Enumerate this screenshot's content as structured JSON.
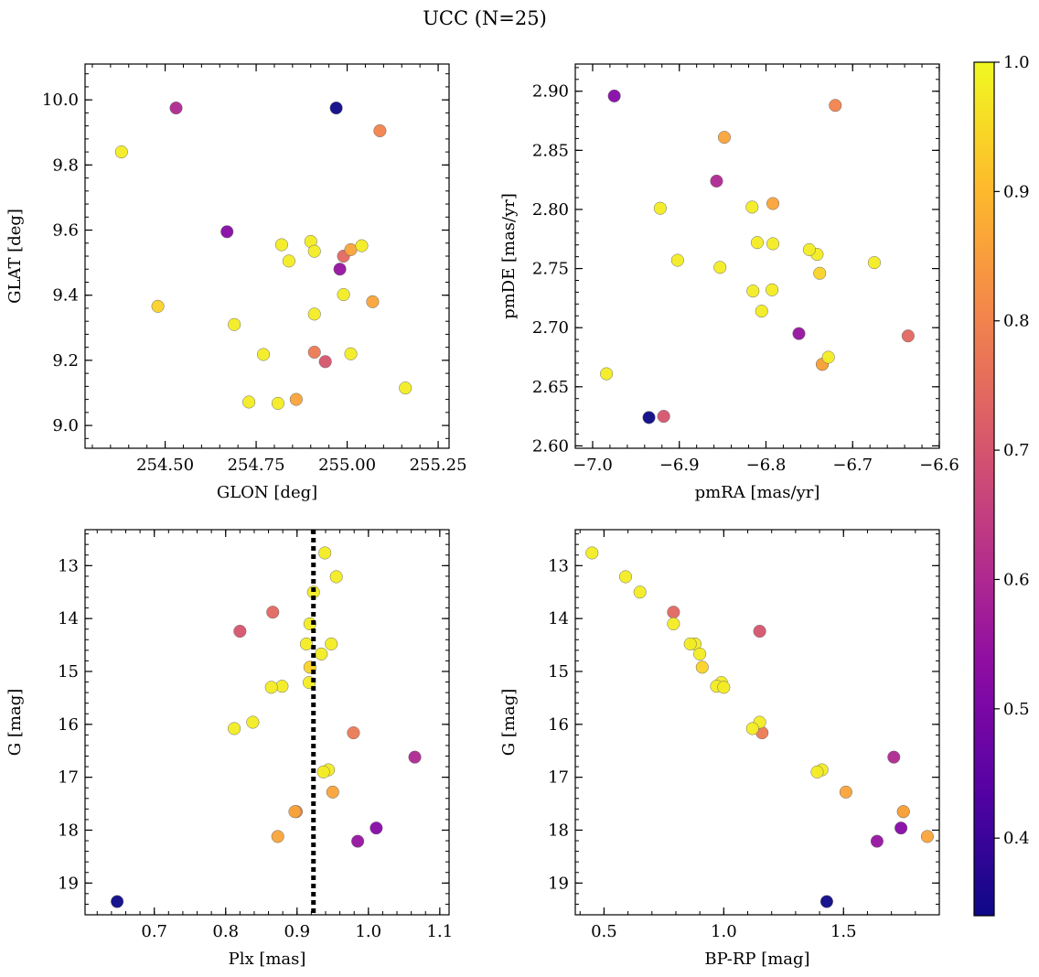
{
  "chart_data": {
    "type": "scatter",
    "title": "UCC (N=25)",
    "colorbar": {
      "colormap": "plasma",
      "range": [
        0.34,
        1.0
      ],
      "ticks": [
        0.4,
        0.5,
        0.6,
        0.7,
        0.8,
        0.9,
        1.0
      ],
      "tick_labels": [
        "0.4",
        "0.5",
        "0.6",
        "0.7",
        "0.8",
        "0.9",
        "1.0"
      ]
    },
    "stars": [
      {
        "glon": 254.38,
        "glat": 9.84,
        "pmra": -6.853,
        "pmde": 2.751,
        "plx": 0.917,
        "g": 15.21,
        "bprp": 0.99,
        "p": 0.98
      },
      {
        "glon": 254.53,
        "glat": 9.975,
        "pmra": -6.857,
        "pmde": 2.824,
        "plx": 1.065,
        "g": 16.62,
        "bprp": 1.71,
        "p": 0.6
      },
      {
        "glon": 254.97,
        "glat": 9.975,
        "pmra": -6.935,
        "pmde": 2.624,
        "plx": 0.648,
        "g": 19.35,
        "bprp": 1.43,
        "p": 0.34
      },
      {
        "glon": 255.09,
        "glat": 9.905,
        "pmra": -6.72,
        "pmde": 2.888,
        "plx": 0.899,
        "g": 17.65,
        "bprp": 1.75,
        "p": 0.8
      },
      {
        "glon": 254.67,
        "glat": 9.595,
        "pmra": -6.975,
        "pmde": 2.896,
        "plx": 1.011,
        "g": 17.96,
        "bprp": 1.74,
        "p": 0.52
      },
      {
        "glon": 254.82,
        "glat": 9.555,
        "pmra": -6.792,
        "pmde": 2.771,
        "plx": 0.944,
        "g": 16.86,
        "bprp": 1.41,
        "p": 0.98
      },
      {
        "glon": 254.9,
        "glat": 9.565,
        "pmra": -6.816,
        "pmde": 2.802,
        "plx": 0.939,
        "g": 12.76,
        "bprp": 0.45,
        "p": 0.98
      },
      {
        "glon": 254.91,
        "glat": 9.535,
        "pmra": -6.81,
        "pmde": 2.772,
        "plx": 0.955,
        "g": 13.21,
        "bprp": 0.59,
        "p": 0.98
      },
      {
        "glon": 254.84,
        "glat": 9.505,
        "pmra": -6.741,
        "pmde": 2.762,
        "plx": 0.923,
        "g": 13.5,
        "bprp": 0.65,
        "p": 0.98
      },
      {
        "glon": 255.01,
        "glat": 9.54,
        "pmra": -6.848,
        "pmde": 2.861,
        "plx": 0.873,
        "g": 18.12,
        "bprp": 1.85,
        "p": 0.86
      },
      {
        "glon": 255.04,
        "glat": 9.552,
        "pmra": -6.75,
        "pmde": 2.766,
        "plx": 0.918,
        "g": 14.1,
        "bprp": 0.79,
        "p": 0.98
      },
      {
        "glon": 254.48,
        "glat": 9.366,
        "pmra": -6.738,
        "pmde": 2.746,
        "plx": 0.918,
        "g": 14.92,
        "bprp": 0.91,
        "p": 0.94
      },
      {
        "glon": 254.99,
        "glat": 9.402,
        "pmra": -6.805,
        "pmde": 2.714,
        "plx": 0.937,
        "g": 16.9,
        "bprp": 1.39,
        "p": 0.98
      },
      {
        "glon": 255.07,
        "glat": 9.38,
        "pmra": -6.792,
        "pmde": 2.805,
        "plx": 0.95,
        "g": 17.28,
        "bprp": 1.51,
        "p": 0.86
      },
      {
        "glon": 254.69,
        "glat": 9.31,
        "pmra": -6.902,
        "pmde": 2.757,
        "plx": 0.948,
        "g": 14.48,
        "bprp": 0.88,
        "p": 0.98
      },
      {
        "glon": 254.91,
        "glat": 9.342,
        "pmra": -6.675,
        "pmde": 2.755,
        "plx": 0.934,
        "g": 14.67,
        "bprp": 0.9,
        "p": 0.98
      },
      {
        "glon": 254.77,
        "glat": 9.218,
        "pmra": -6.793,
        "pmde": 2.732,
        "plx": 0.913,
        "g": 14.48,
        "bprp": 0.86,
        "p": 0.98
      },
      {
        "glon": 254.91,
        "glat": 9.225,
        "pmra": -6.735,
        "pmde": 2.669,
        "plx": 0.979,
        "g": 16.16,
        "bprp": 1.16,
        "p": 0.78
      },
      {
        "glon": 254.94,
        "glat": 9.196,
        "pmra": -6.918,
        "pmde": 2.625,
        "plx": 0.82,
        "g": 14.24,
        "bprp": 1.15,
        "p": 0.7
      },
      {
        "glon": 255.01,
        "glat": 9.22,
        "pmra": -6.815,
        "pmde": 2.731,
        "plx": 0.879,
        "g": 15.28,
        "bprp": 0.97,
        "p": 0.98
      },
      {
        "glon": 254.73,
        "glat": 9.072,
        "pmra": -6.922,
        "pmde": 2.801,
        "plx": 0.838,
        "g": 15.96,
        "bprp": 1.15,
        "p": 0.98
      },
      {
        "glon": 254.81,
        "glat": 9.068,
        "pmra": -6.984,
        "pmde": 2.661,
        "plx": 0.812,
        "g": 16.08,
        "bprp": 1.12,
        "p": 0.98
      },
      {
        "glon": 254.86,
        "glat": 9.08,
        "pmra": -6.735,
        "pmde": 2.669,
        "plx": 0.897,
        "g": 17.65,
        "bprp": 1.75,
        "p": 0.86
      },
      {
        "glon": 255.16,
        "glat": 9.115,
        "pmra": -6.728,
        "pmde": 2.675,
        "plx": 0.864,
        "g": 15.3,
        "bprp": 1.0,
        "p": 0.98
      },
      {
        "glon": 254.98,
        "glat": 9.48,
        "pmra": -6.762,
        "pmde": 2.695,
        "plx": 0.985,
        "g": 18.21,
        "bprp": 1.64,
        "p": 0.55
      },
      {
        "glon": 254.99,
        "glat": 9.52,
        "pmra": -6.636,
        "pmde": 2.693,
        "plx": 0.866,
        "g": 13.88,
        "bprp": 0.79,
        "p": 0.74
      }
    ],
    "panels": [
      {
        "id": "glon-glat",
        "x": "glon",
        "y": "glat",
        "xlabel": "GLON [deg]",
        "ylabel": "GLAT [deg]",
        "xlim": [
          254.28,
          255.28
        ],
        "ylim": [
          8.93,
          10.11
        ],
        "xticks": [
          254.5,
          254.75,
          255.0,
          255.25
        ],
        "xtick_labels": [
          "254.50",
          "254.75",
          "255.00",
          "255.25"
        ],
        "yticks": [
          9.0,
          9.2,
          9.4,
          9.6,
          9.8,
          10.0
        ],
        "ytick_labels": [
          "9.0",
          "9.2",
          "9.4",
          "9.6",
          "9.8",
          "10.0"
        ],
        "invert_y": false
      },
      {
        "id": "pmra-pmde",
        "x": "pmra",
        "y": "pmde",
        "xlabel": "pmRA [mas/yr]",
        "ylabel": "pmDE [mas/yr]",
        "xlim": [
          -7.02,
          -6.6
        ],
        "ylim": [
          2.598,
          2.923
        ],
        "xticks": [
          -7.0,
          -6.9,
          -6.8,
          -6.7,
          -6.6
        ],
        "xtick_labels": [
          "−7.0",
          "−6.9",
          "−6.8",
          "−6.7",
          "−6.6"
        ],
        "yticks": [
          2.6,
          2.65,
          2.7,
          2.75,
          2.8,
          2.85,
          2.9
        ],
        "ytick_labels": [
          "2.60",
          "2.65",
          "2.70",
          "2.75",
          "2.80",
          "2.85",
          "2.90"
        ],
        "invert_y": false
      },
      {
        "id": "plx-g",
        "x": "plx",
        "y": "g",
        "xlabel": "Plx [mas]",
        "ylabel": "G [mag]",
        "xlim": [
          0.603,
          1.113
        ],
        "ylim": [
          12.32,
          19.6
        ],
        "xticks": [
          0.7,
          0.8,
          0.9,
          1.0,
          1.1
        ],
        "xtick_labels": [
          "0.7",
          "0.8",
          "0.9",
          "1.0",
          "1.1"
        ],
        "yticks": [
          13,
          14,
          15,
          16,
          17,
          18,
          19
        ],
        "ytick_labels": [
          "13",
          "14",
          "15",
          "16",
          "17",
          "18",
          "19"
        ],
        "invert_y": true,
        "vline": 0.923
      },
      {
        "id": "bprp-g",
        "x": "bprp",
        "y": "g",
        "xlabel": "BP-RP [mag]",
        "ylabel": "G [mag]",
        "xlim": [
          0.38,
          1.9
        ],
        "ylim": [
          12.32,
          19.6
        ],
        "xticks": [
          0.5,
          1.0,
          1.5
        ],
        "xtick_labels": [
          "0.5",
          "1.0",
          "1.5"
        ],
        "yticks": [
          13,
          14,
          15,
          16,
          17,
          18,
          19
        ],
        "ytick_labels": [
          "13",
          "14",
          "15",
          "16",
          "17",
          "18",
          "19"
        ],
        "invert_y": true
      }
    ]
  }
}
